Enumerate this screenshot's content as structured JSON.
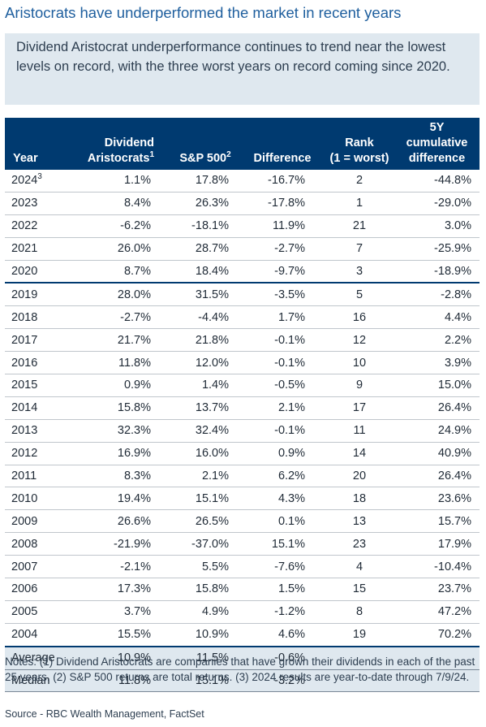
{
  "title": "Aristocrats have underperformed the market in recent years",
  "callout": "Dividend Aristocrat underperformance continues to trend near the lowest levels on record, with the three worst years on record coming since 2020.",
  "chart_data": {
    "type": "table",
    "columns": [
      {
        "key": "year",
        "line1": "",
        "line2": "Year",
        "sup": ""
      },
      {
        "key": "dividend_aristocrats",
        "line1": "Dividend",
        "line2": "Aristocrats",
        "sup": "1"
      },
      {
        "key": "sp500",
        "line1": "",
        "line2": "S&P 500",
        "sup": "2"
      },
      {
        "key": "difference",
        "line1": "",
        "line2": "Difference",
        "sup": ""
      },
      {
        "key": "rank",
        "line1": "Rank",
        "line2": "(1 = worst)",
        "sup": ""
      },
      {
        "key": "cumulative_5y",
        "line1": "5Y cumulative",
        "line2": "difference",
        "sup": ""
      }
    ],
    "rows": [
      {
        "year": "2024",
        "year_sup": "3",
        "div": "1.1%",
        "sp": "17.8%",
        "diff": "-16.7%",
        "rank": "2",
        "cum": "-44.8%"
      },
      {
        "year": "2023",
        "year_sup": "",
        "div": "8.4%",
        "sp": "26.3%",
        "diff": "-17.8%",
        "rank": "1",
        "cum": "-29.0%"
      },
      {
        "year": "2022",
        "year_sup": "",
        "div": "-6.2%",
        "sp": "-18.1%",
        "diff": "11.9%",
        "rank": "21",
        "cum": "3.0%"
      },
      {
        "year": "2021",
        "year_sup": "",
        "div": "26.0%",
        "sp": "28.7%",
        "diff": "-2.7%",
        "rank": "7",
        "cum": "-25.9%"
      },
      {
        "year": "2020",
        "year_sup": "",
        "div": "8.7%",
        "sp": "18.4%",
        "diff": "-9.7%",
        "rank": "3",
        "cum": "-18.9%"
      },
      {
        "year": "2019",
        "year_sup": "",
        "div": "28.0%",
        "sp": "31.5%",
        "diff": "-3.5%",
        "rank": "5",
        "cum": "-2.8%"
      },
      {
        "year": "2018",
        "year_sup": "",
        "div": "-2.7%",
        "sp": "-4.4%",
        "diff": "1.7%",
        "rank": "16",
        "cum": "4.4%"
      },
      {
        "year": "2017",
        "year_sup": "",
        "div": "21.7%",
        "sp": "21.8%",
        "diff": "-0.1%",
        "rank": "12",
        "cum": "2.2%"
      },
      {
        "year": "2016",
        "year_sup": "",
        "div": "11.8%",
        "sp": "12.0%",
        "diff": "-0.1%",
        "rank": "10",
        "cum": "3.9%"
      },
      {
        "year": "2015",
        "year_sup": "",
        "div": "0.9%",
        "sp": "1.4%",
        "diff": "-0.5%",
        "rank": "9",
        "cum": "15.0%"
      },
      {
        "year": "2014",
        "year_sup": "",
        "div": "15.8%",
        "sp": "13.7%",
        "diff": "2.1%",
        "rank": "17",
        "cum": "26.4%"
      },
      {
        "year": "2013",
        "year_sup": "",
        "div": "32.3%",
        "sp": "32.4%",
        "diff": "-0.1%",
        "rank": "11",
        "cum": "24.9%"
      },
      {
        "year": "2012",
        "year_sup": "",
        "div": "16.9%",
        "sp": "16.0%",
        "diff": "0.9%",
        "rank": "14",
        "cum": "40.9%"
      },
      {
        "year": "2011",
        "year_sup": "",
        "div": "8.3%",
        "sp": "2.1%",
        "diff": "6.2%",
        "rank": "20",
        "cum": "26.4%"
      },
      {
        "year": "2010",
        "year_sup": "",
        "div": "19.4%",
        "sp": "15.1%",
        "diff": "4.3%",
        "rank": "18",
        "cum": "23.6%"
      },
      {
        "year": "2009",
        "year_sup": "",
        "div": "26.6%",
        "sp": "26.5%",
        "diff": "0.1%",
        "rank": "13",
        "cum": "15.7%"
      },
      {
        "year": "2008",
        "year_sup": "",
        "div": "-21.9%",
        "sp": "-37.0%",
        "diff": "15.1%",
        "rank": "23",
        "cum": "17.9%"
      },
      {
        "year": "2007",
        "year_sup": "",
        "div": "-2.1%",
        "sp": "5.5%",
        "diff": "-7.6%",
        "rank": "4",
        "cum": "-10.4%"
      },
      {
        "year": "2006",
        "year_sup": "",
        "div": "17.3%",
        "sp": "15.8%",
        "diff": "1.5%",
        "rank": "15",
        "cum": "23.7%"
      },
      {
        "year": "2005",
        "year_sup": "",
        "div": "3.7%",
        "sp": "4.9%",
        "diff": "-1.2%",
        "rank": "8",
        "cum": "47.2%"
      },
      {
        "year": "2004",
        "year_sup": "",
        "div": "15.5%",
        "sp": "10.9%",
        "diff": "4.6%",
        "rank": "19",
        "cum": "70.2%"
      }
    ],
    "summary": [
      {
        "label": "Average",
        "div": "10.9%",
        "sp": "11.5%",
        "diff": "-0.6%"
      },
      {
        "label": "Median",
        "div": "11.8%",
        "sp": "15.1%",
        "diff": "-3.2%"
      }
    ]
  },
  "notes": "Notes: (1) Dividend Aristocrats are companies that have grown their dividends in each of the past 25 years. (2) S&P 500 returns are total returns. (3) 2024 results are year-to-date through 7/9/24.",
  "source": "Source - RBC Wealth Management, FactSet",
  "colors": {
    "header_bg": "#003a70",
    "title": "#1f5f9e",
    "callout_bg": "#dfe8ef"
  }
}
